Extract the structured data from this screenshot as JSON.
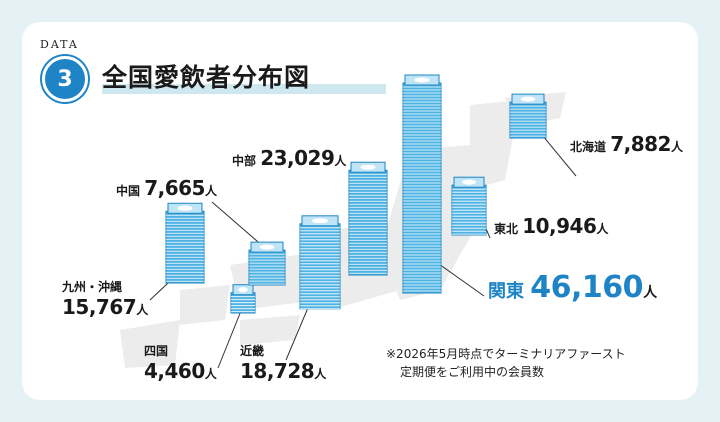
{
  "badge": {
    "label": "DATA",
    "number": "3"
  },
  "title": "全国愛飲者分布図",
  "unit": "人",
  "note": {
    "line1": "※2026年5月時点でターミナリアファースト",
    "line2": "定期便をご利用中の会員数"
  },
  "colors": {
    "accent": "#1e84c6",
    "stack": "#4fb3e3",
    "stack_edge": "#1f86c4",
    "map": "#ececec"
  },
  "chart_data": {
    "type": "bar",
    "title": "全国愛飲者分布図",
    "categories": [
      "九州・沖縄",
      "四国",
      "中国",
      "近畿",
      "中部",
      "関東",
      "東北",
      "北海道"
    ],
    "values": [
      15767,
      4460,
      7665,
      18728,
      23029,
      46160,
      10946,
      7882
    ],
    "display_values": [
      "15,767",
      "4,460",
      "7,665",
      "18,728",
      "23,029",
      "46,160",
      "10,946",
      "7,882"
    ],
    "highlight": "関東",
    "unit": "人"
  }
}
